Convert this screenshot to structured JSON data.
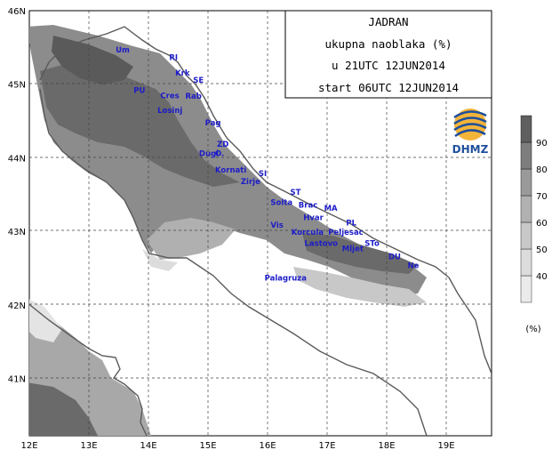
{
  "title": {
    "line1": "JADRAN",
    "line2": "ukupna naoblaka (%)",
    "line3": "u 21UTC 12JUN2014",
    "line4": "start 06UTC 12JUN2014"
  },
  "logo": {
    "text": "DHMZ"
  },
  "axes": {
    "x_ticks": [
      "12E",
      "13E",
      "14E",
      "15E",
      "16E",
      "17E",
      "18E",
      "19E"
    ],
    "y_ticks": [
      "46N",
      "45N",
      "44N",
      "43N",
      "42N",
      "41N"
    ]
  },
  "legend": {
    "levels": [
      "40",
      "50",
      "60",
      "70",
      "80",
      "90"
    ],
    "unit": "(%)",
    "colors": [
      "#ebebeb",
      "#dcdcdc",
      "#c8c8c8",
      "#b1b1b1",
      "#9a9a9a",
      "#7e7e7e",
      "#5f5f5f"
    ]
  },
  "places": [
    {
      "name": "Um",
      "lon": 13.45,
      "lat": 45.43
    },
    {
      "name": "RI",
      "lon": 14.35,
      "lat": 45.33
    },
    {
      "name": "Krk",
      "lon": 14.45,
      "lat": 45.12
    },
    {
      "name": "SE",
      "lon": 14.75,
      "lat": 45.02
    },
    {
      "name": "PU",
      "lon": 13.75,
      "lat": 44.88
    },
    {
      "name": "Cres",
      "lon": 14.2,
      "lat": 44.81
    },
    {
      "name": "Rab",
      "lon": 14.62,
      "lat": 44.8
    },
    {
      "name": "Losinj",
      "lon": 14.15,
      "lat": 44.61
    },
    {
      "name": "Pag",
      "lon": 14.95,
      "lat": 44.44
    },
    {
      "name": "ZD",
      "lon": 15.15,
      "lat": 44.15
    },
    {
      "name": "Dugi",
      "lon": 14.85,
      "lat": 44.02
    },
    {
      "name": "O.",
      "lon": 15.12,
      "lat": 44.02
    },
    {
      "name": "Kornati",
      "lon": 15.12,
      "lat": 43.8
    },
    {
      "name": "SI",
      "lon": 15.85,
      "lat": 43.75
    },
    {
      "name": "Zirje",
      "lon": 15.55,
      "lat": 43.64
    },
    {
      "name": "ST",
      "lon": 16.38,
      "lat": 43.5
    },
    {
      "name": "Solta",
      "lon": 16.05,
      "lat": 43.36
    },
    {
      "name": "Brac",
      "lon": 16.52,
      "lat": 43.32
    },
    {
      "name": "MA",
      "lon": 16.95,
      "lat": 43.28
    },
    {
      "name": "Hvar",
      "lon": 16.6,
      "lat": 43.15
    },
    {
      "name": "PL",
      "lon": 17.32,
      "lat": 43.08
    },
    {
      "name": "Vis",
      "lon": 16.05,
      "lat": 43.05
    },
    {
      "name": "Korcula",
      "lon": 16.4,
      "lat": 42.95
    },
    {
      "name": "Peljesac",
      "lon": 17.02,
      "lat": 42.95
    },
    {
      "name": "Lastovo",
      "lon": 16.62,
      "lat": 42.8
    },
    {
      "name": "Mljet",
      "lon": 17.25,
      "lat": 42.73
    },
    {
      "name": "STo",
      "lon": 17.63,
      "lat": 42.8
    },
    {
      "name": "DU",
      "lon": 18.03,
      "lat": 42.62
    },
    {
      "name": "Ne",
      "lon": 18.35,
      "lat": 42.5
    },
    {
      "name": "Palagruza",
      "lon": 15.95,
      "lat": 42.33
    }
  ]
}
